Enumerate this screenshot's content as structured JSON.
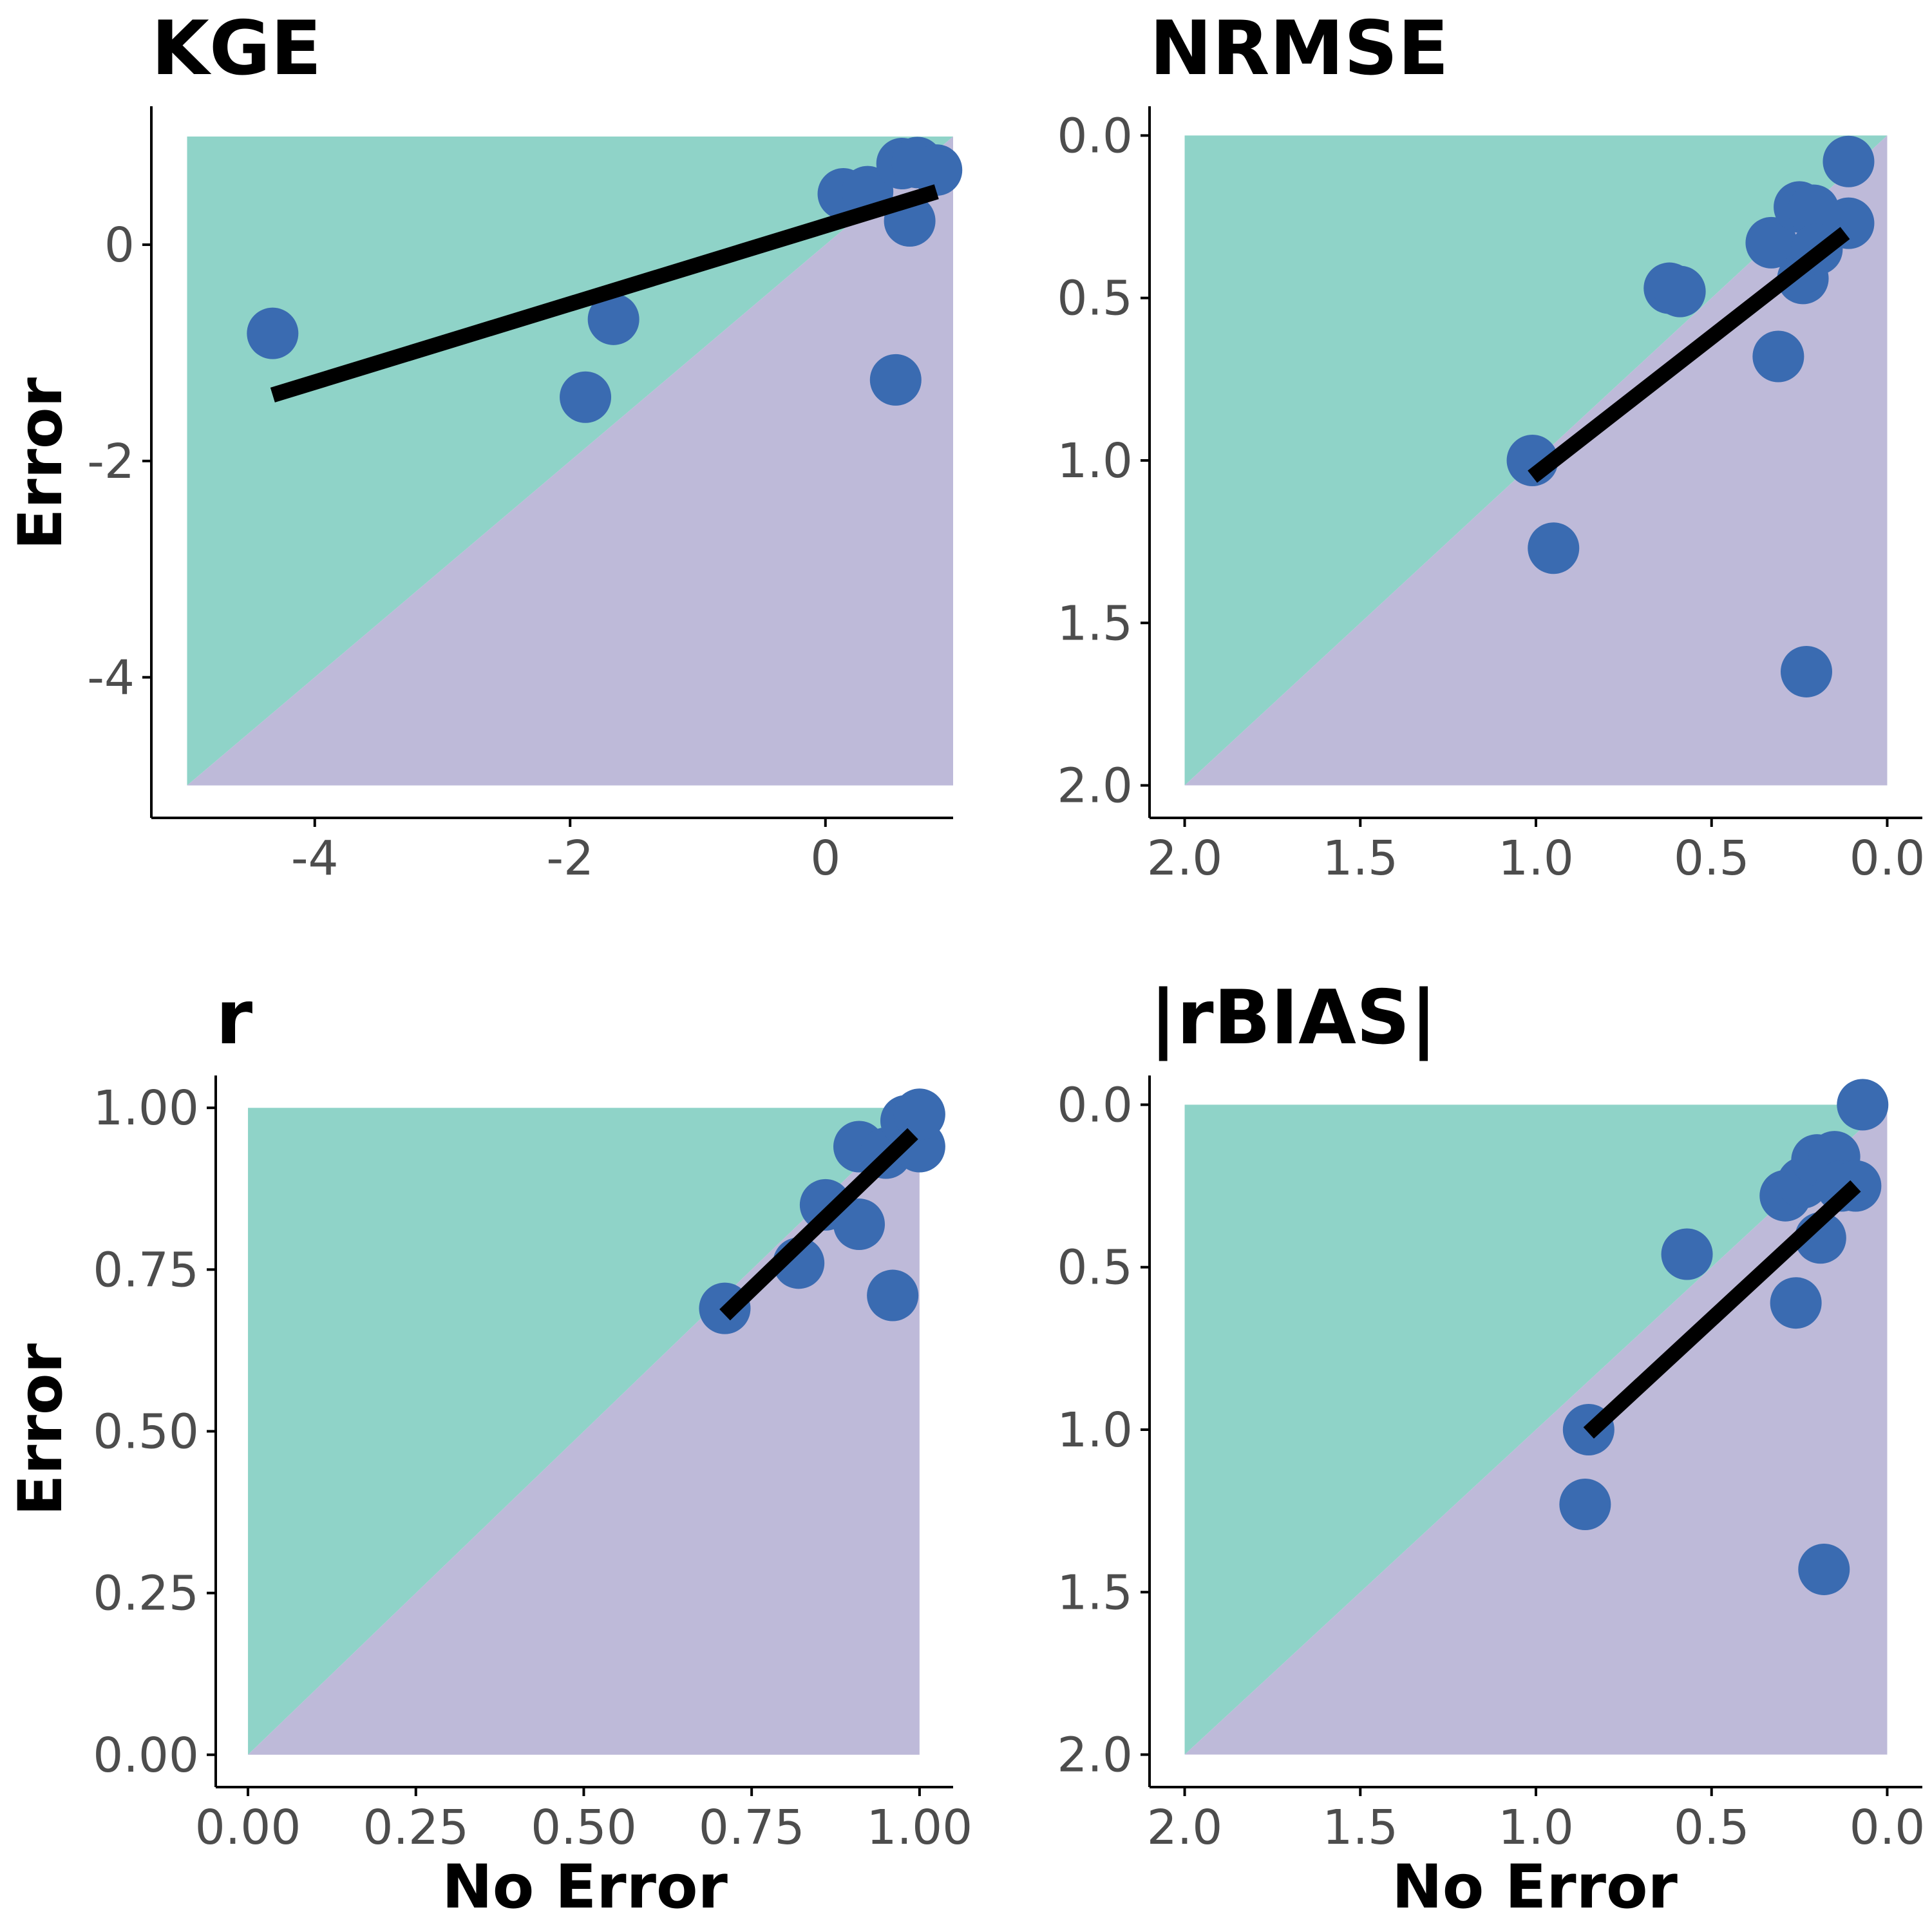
{
  "colors": {
    "upper_region": "#8fd3c8",
    "lower_region": "#bebad9",
    "point": "#3a6bb1",
    "fit_line": "#000000",
    "axis": "#000000",
    "tick_text": "#4d4d4d"
  },
  "shared_labels": {
    "ylabel": "Error",
    "xlabel": "No Error"
  },
  "chart_data": [
    {
      "type": "scatter",
      "title": "KGE",
      "x_reversed": false,
      "y_reversed": false,
      "xlim": [
        -5.28,
        1.0
      ],
      "ylim": [
        -5.3,
        1.28
      ],
      "region_range": [
        -5,
        1
      ],
      "x_ticks": [
        -4,
        -2,
        0
      ],
      "x_tick_labels": [
        "-4",
        "-2",
        "0"
      ],
      "y_ticks": [
        0,
        -2,
        -4
      ],
      "y_tick_labels": [
        "0",
        "-2",
        "-4"
      ],
      "points": [
        {
          "x": -4.33,
          "y": -0.82
        },
        {
          "x": -1.88,
          "y": -1.41
        },
        {
          "x": -1.66,
          "y": -0.69
        },
        {
          "x": 0.14,
          "y": 0.47
        },
        {
          "x": 0.33,
          "y": 0.49
        },
        {
          "x": 0.55,
          "y": -1.25
        },
        {
          "x": 0.6,
          "y": 0.75
        },
        {
          "x": 0.66,
          "y": 0.22
        },
        {
          "x": 0.72,
          "y": 0.76
        },
        {
          "x": 0.87,
          "y": 0.69
        }
      ],
      "fit_line": {
        "x1": -4.33,
        "y1": -1.39,
        "x2": 0.87,
        "y2": 0.49
      }
    },
    {
      "type": "scatter",
      "title": "NRMSE",
      "x_reversed": true,
      "y_reversed": true,
      "xlim": [
        2.1,
        -0.1
      ],
      "ylim": [
        2.1,
        -0.09
      ],
      "region_range": [
        0,
        2
      ],
      "x_ticks": [
        2.0,
        1.5,
        1.0,
        0.5,
        0.0
      ],
      "x_tick_labels": [
        "2.0",
        "1.5",
        "1.0",
        "0.5",
        "0.0"
      ],
      "y_ticks": [
        0.0,
        0.5,
        1.0,
        1.5,
        2.0
      ],
      "y_tick_labels": [
        "0.0",
        "0.5",
        "1.0",
        "1.5",
        "2.0"
      ],
      "points": [
        {
          "x": 1.01,
          "y": 1.0
        },
        {
          "x": 0.95,
          "y": 1.27
        },
        {
          "x": 0.62,
          "y": 0.47
        },
        {
          "x": 0.59,
          "y": 0.48
        },
        {
          "x": 0.33,
          "y": 0.33
        },
        {
          "x": 0.31,
          "y": 0.68
        },
        {
          "x": 0.25,
          "y": 0.22
        },
        {
          "x": 0.24,
          "y": 0.44
        },
        {
          "x": 0.23,
          "y": 1.65
        },
        {
          "x": 0.21,
          "y": 0.23
        },
        {
          "x": 0.2,
          "y": 0.35
        },
        {
          "x": 0.11,
          "y": 0.27
        },
        {
          "x": 0.11,
          "y": 0.08
        }
      ],
      "fit_line": {
        "x1": 1.01,
        "y1": 1.05,
        "x2": 0.12,
        "y2": 0.3
      }
    },
    {
      "type": "scatter",
      "title": "r",
      "x_reversed": false,
      "y_reversed": false,
      "xlim": [
        -0.048,
        1.05
      ],
      "ylim": [
        -0.05,
        1.05
      ],
      "region_range": [
        0,
        1
      ],
      "x_ticks": [
        0.0,
        0.25,
        0.5,
        0.75,
        1.0
      ],
      "x_tick_labels": [
        "0.00",
        "0.25",
        "0.50",
        "0.75",
        "1.00"
      ],
      "y_ticks": [
        1.0,
        0.75,
        0.5,
        0.25,
        0.0
      ],
      "y_tick_labels": [
        "1.00",
        "0.75",
        "0.50",
        "0.25",
        "0.00"
      ],
      "points": [
        {
          "x": 0.71,
          "y": 0.69
        },
        {
          "x": 0.82,
          "y": 0.76
        },
        {
          "x": 0.86,
          "y": 0.85
        },
        {
          "x": 0.91,
          "y": 0.82
        },
        {
          "x": 0.91,
          "y": 0.94
        },
        {
          "x": 0.95,
          "y": 0.93
        },
        {
          "x": 0.96,
          "y": 0.71
        },
        {
          "x": 0.98,
          "y": 0.98
        },
        {
          "x": 1.0,
          "y": 0.94
        },
        {
          "x": 1.0,
          "y": 0.99
        }
      ],
      "fit_line": {
        "x1": 0.71,
        "y1": 0.68,
        "x2": 0.99,
        "y2": 0.96
      }
    },
    {
      "type": "scatter",
      "title": "|rBIAS|",
      "x_reversed": true,
      "y_reversed": true,
      "xlim": [
        2.1,
        -0.1
      ],
      "ylim": [
        2.1,
        -0.09
      ],
      "region_range": [
        0,
        2
      ],
      "x_ticks": [
        2.0,
        1.5,
        1.0,
        0.5,
        0.0
      ],
      "x_tick_labels": [
        "2.0",
        "1.5",
        "1.0",
        "0.5",
        "0.0"
      ],
      "y_ticks": [
        0.0,
        0.5,
        1.0,
        1.5,
        2.0
      ],
      "y_tick_labels": [
        "0.0",
        "0.5",
        "1.0",
        "1.5",
        "2.0"
      ],
      "points": [
        {
          "x": 0.85,
          "y": 1.0
        },
        {
          "x": 0.86,
          "y": 1.23
        },
        {
          "x": 0.57,
          "y": 0.46
        },
        {
          "x": 0.29,
          "y": 0.28
        },
        {
          "x": 0.26,
          "y": 0.61
        },
        {
          "x": 0.24,
          "y": 0.24
        },
        {
          "x": 0.2,
          "y": 0.17
        },
        {
          "x": 0.19,
          "y": 0.41
        },
        {
          "x": 0.18,
          "y": 1.43
        },
        {
          "x": 0.15,
          "y": 0.16
        },
        {
          "x": 0.13,
          "y": 0.25
        },
        {
          "x": 0.09,
          "y": 0.25
        },
        {
          "x": 0.07,
          "y": 0.0
        }
      ],
      "fit_line": {
        "x1": 0.85,
        "y1": 1.01,
        "x2": 0.09,
        "y2": 0.25
      }
    }
  ]
}
